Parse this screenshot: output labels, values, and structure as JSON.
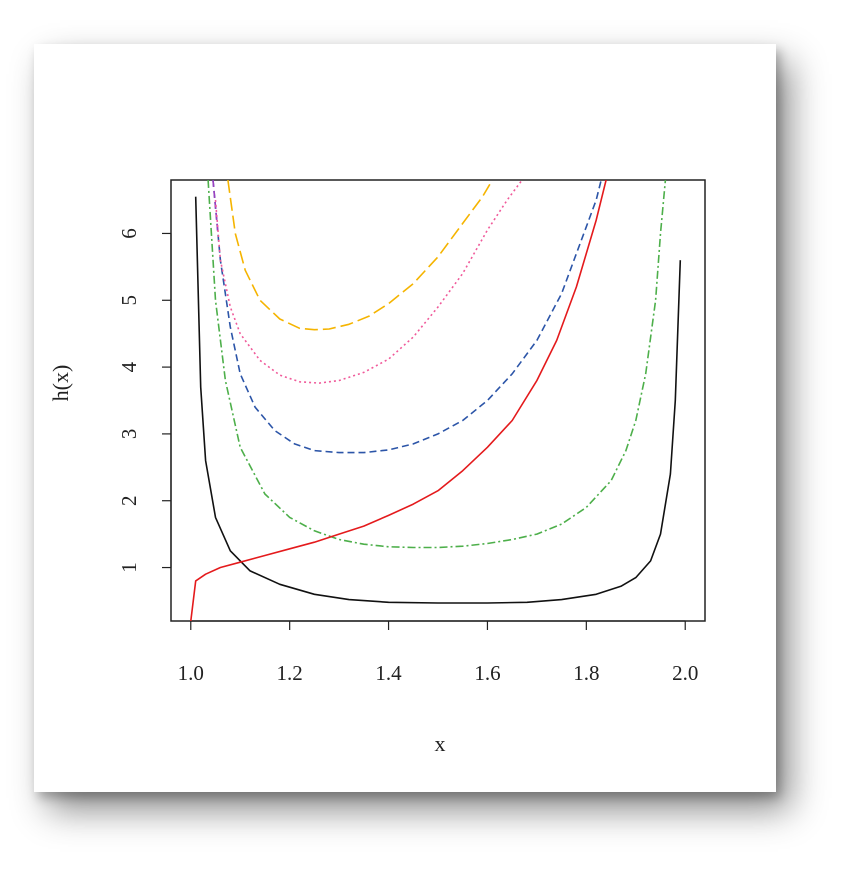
{
  "chart_data": {
    "type": "line",
    "title": "",
    "xlabel": "x",
    "ylabel": "h(x)",
    "xlim": [
      0.96,
      2.04
    ],
    "ylim": [
      0.2,
      6.8
    ],
    "grid": false,
    "xticks": [
      1.0,
      1.2,
      1.4,
      1.6,
      1.8,
      2.0
    ],
    "xtick_labels": [
      "1.0",
      "1.2",
      "1.4",
      "1.6",
      "1.8",
      "2.0"
    ],
    "yticks": [
      1,
      2,
      3,
      4,
      5,
      6
    ],
    "ytick_labels": [
      "1",
      "2",
      "3",
      "4",
      "5",
      "6"
    ],
    "series": [
      {
        "color": "#111111",
        "dash": "solid",
        "x": [
          1.01,
          1.02,
          1.03,
          1.05,
          1.08,
          1.12,
          1.18,
          1.25,
          1.32,
          1.4,
          1.5,
          1.6,
          1.68,
          1.75,
          1.82,
          1.87,
          1.9,
          1.93,
          1.95,
          1.97,
          1.98,
          1.99
        ],
        "y": [
          6.55,
          3.7,
          2.6,
          1.75,
          1.25,
          0.95,
          0.75,
          0.6,
          0.52,
          0.48,
          0.47,
          0.47,
          0.48,
          0.52,
          0.6,
          0.72,
          0.85,
          1.1,
          1.5,
          2.4,
          3.5,
          5.6
        ]
      },
      {
        "color": "#e41a1c",
        "dash": "solid",
        "x": [
          1.0,
          1.01,
          1.03,
          1.06,
          1.1,
          1.15,
          1.2,
          1.25,
          1.3,
          1.35,
          1.4,
          1.45,
          1.5,
          1.55,
          1.6,
          1.65,
          1.7,
          1.74,
          1.78,
          1.82,
          1.84
        ],
        "y": [
          0.2,
          0.8,
          0.9,
          1.0,
          1.08,
          1.18,
          1.28,
          1.38,
          1.5,
          1.62,
          1.78,
          1.95,
          2.15,
          2.45,
          2.8,
          3.2,
          3.8,
          4.4,
          5.2,
          6.2,
          6.8
        ],
        "draw_order": 5
      },
      {
        "color": "#4daf4a",
        "dash": "dotdash",
        "x": [
          1.035,
          1.05,
          1.07,
          1.1,
          1.15,
          1.2,
          1.25,
          1.3,
          1.35,
          1.4,
          1.45,
          1.5,
          1.55,
          1.6,
          1.65,
          1.7,
          1.75,
          1.8,
          1.85,
          1.88,
          1.9,
          1.92,
          1.94,
          1.95,
          1.96
        ],
        "y": [
          6.8,
          5.0,
          3.8,
          2.8,
          2.1,
          1.75,
          1.55,
          1.42,
          1.35,
          1.31,
          1.3,
          1.3,
          1.32,
          1.36,
          1.42,
          1.5,
          1.65,
          1.9,
          2.3,
          2.75,
          3.2,
          3.9,
          5.0,
          6.0,
          6.8
        ]
      },
      {
        "color": "#2c55a8",
        "dash": "dashed",
        "x": [
          1.045,
          1.06,
          1.08,
          1.1,
          1.13,
          1.17,
          1.21,
          1.25,
          1.3,
          1.35,
          1.4,
          1.45,
          1.5,
          1.55,
          1.6,
          1.65,
          1.7,
          1.75,
          1.78,
          1.8,
          1.82,
          1.83
        ],
        "y": [
          6.8,
          5.6,
          4.6,
          3.9,
          3.4,
          3.05,
          2.85,
          2.75,
          2.72,
          2.72,
          2.76,
          2.85,
          3.0,
          3.2,
          3.5,
          3.9,
          4.4,
          5.1,
          5.7,
          6.1,
          6.5,
          6.8
        ]
      },
      {
        "color": "#9c40c0",
        "dash": "dashed",
        "x": [
          1.045,
          1.05,
          1.055
        ],
        "y": [
          6.8,
          6.4,
          6.0
        ]
      },
      {
        "color": "#f05a9a",
        "dash": "dotted",
        "x": [
          1.05,
          1.06,
          1.08,
          1.1,
          1.14,
          1.18,
          1.22,
          1.26,
          1.3,
          1.35,
          1.4,
          1.45,
          1.5,
          1.55,
          1.6,
          1.64,
          1.67
        ],
        "y": [
          6.5,
          5.6,
          4.9,
          4.5,
          4.1,
          3.88,
          3.78,
          3.76,
          3.8,
          3.92,
          4.12,
          4.45,
          4.9,
          5.4,
          6.05,
          6.5,
          6.8
        ]
      },
      {
        "color": "#f5b400",
        "dash": "longdash",
        "x": [
          1.075,
          1.09,
          1.11,
          1.14,
          1.18,
          1.22,
          1.25,
          1.28,
          1.32,
          1.36,
          1.4,
          1.45,
          1.5,
          1.55,
          1.59,
          1.61
        ],
        "y": [
          6.8,
          6.0,
          5.45,
          5.0,
          4.72,
          4.58,
          4.56,
          4.57,
          4.64,
          4.76,
          4.95,
          5.25,
          5.65,
          6.15,
          6.55,
          6.8
        ]
      }
    ]
  }
}
